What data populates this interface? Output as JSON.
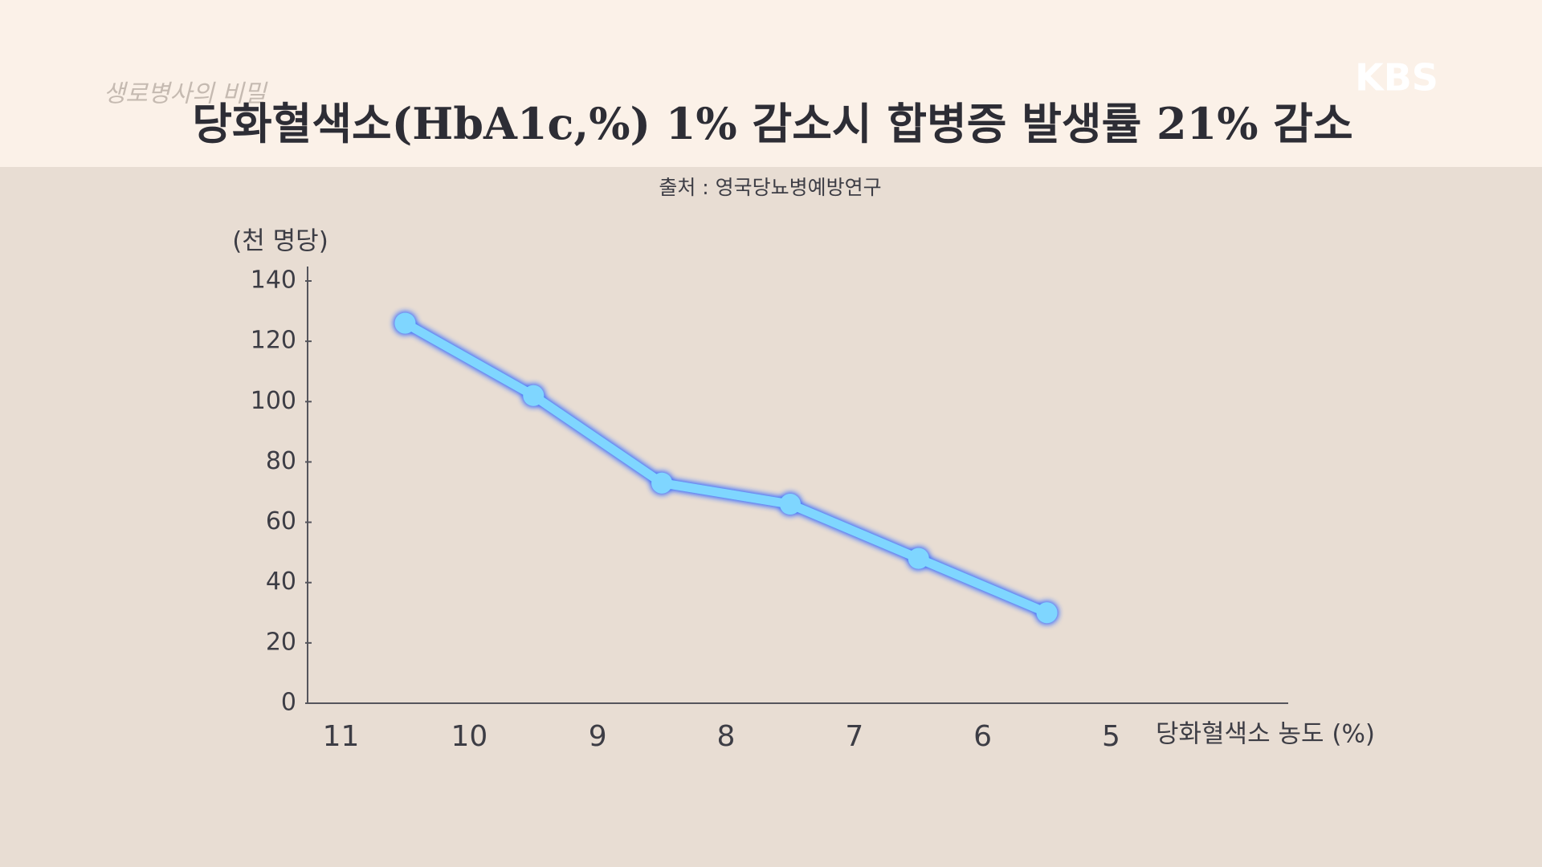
{
  "chart_data": {
    "type": "line",
    "title": "당화혈색소(HbA1c,%) 1% 감소시 합병증 발생률 21% 감소",
    "subtitle": "출처 : 영국당뇨병예방연구",
    "y_label": "(천 명당)",
    "x_label": "당화혈색소 농도 (%)",
    "x": [
      10.5,
      9.5,
      8.5,
      7.5,
      6.5,
      5.5
    ],
    "series": [
      {
        "color": "#7fd6ff",
        "values": [
          126,
          102,
          73,
          66,
          48,
          30
        ]
      }
    ],
    "xlim": [
      11.26,
      3.62
    ],
    "xticks": [
      11,
      10,
      9,
      8,
      7,
      6,
      5
    ],
    "ylim": [
      0,
      140
    ],
    "yticks": [
      0,
      20,
      40,
      60,
      80,
      100,
      120,
      140
    ]
  },
  "overlay": {
    "logo": "KBS",
    "program": "생로병사의 비밀"
  }
}
